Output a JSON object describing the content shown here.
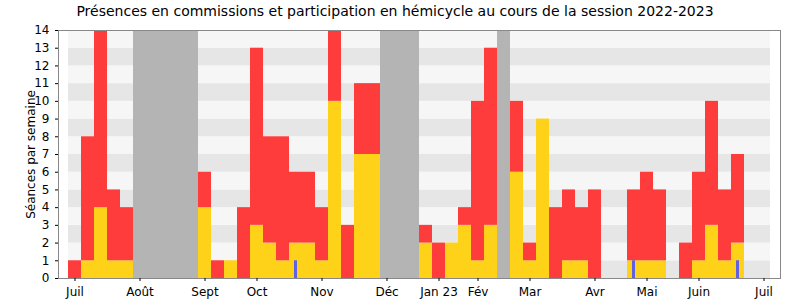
{
  "chart_data": {
    "type": "bar",
    "title": "Présences en commissions et participation en hémicycle au cours de la session 2022-2023",
    "y_label": "Séances par semaine",
    "stacked": true,
    "grid": true,
    "categories": [
      "Juil",
      null,
      null,
      null,
      null,
      "Août",
      null,
      null,
      null,
      null,
      "Sept",
      null,
      null,
      null,
      "Oct",
      null,
      null,
      null,
      null,
      "Nov",
      null,
      null,
      null,
      null,
      "Déc",
      null,
      null,
      null,
      "Jan 23",
      null,
      null,
      "Fév",
      null,
      null,
      null,
      "Mar",
      null,
      null,
      null,
      null,
      "Avr",
      null,
      null,
      null,
      "Mai",
      null,
      null,
      null,
      "Juin",
      null,
      null,
      null,
      null,
      "Juil"
    ],
    "series": [
      {
        "type": "background",
        "color": "#b4b4b4",
        "values": [
          null,
          null,
          null,
          null,
          null,
          14,
          14,
          14,
          14,
          14,
          null,
          null,
          null,
          null,
          null,
          null,
          null,
          null,
          null,
          null,
          null,
          null,
          null,
          null,
          14,
          14,
          14,
          null,
          null,
          null,
          null,
          null,
          null,
          14,
          null,
          null,
          null,
          null,
          null,
          null,
          null,
          null,
          null,
          null,
          null,
          null,
          null,
          null,
          null,
          null,
          null,
          null,
          null,
          null
        ]
      },
      {
        "type": "bar",
        "color": "#ffd21a",
        "values": [
          0,
          1,
          4,
          1,
          1,
          0,
          0,
          0,
          0,
          0,
          4,
          0,
          1,
          0,
          3,
          2,
          1,
          2,
          2,
          1,
          10,
          0,
          7,
          7,
          0,
          0,
          0,
          2,
          0,
          2,
          3,
          1,
          3,
          0,
          6,
          1,
          9,
          0,
          1,
          1,
          0,
          0,
          0,
          1,
          1,
          1,
          0,
          0,
          1,
          3,
          1,
          2,
          0,
          0
        ]
      },
      {
        "type": "bar",
        "color": "#ff3c3c",
        "values": [
          1,
          7,
          10,
          4,
          3,
          0,
          0,
          0,
          0,
          0,
          2,
          1,
          0,
          4,
          10,
          6,
          7,
          4,
          4,
          3,
          4,
          3,
          4,
          4,
          0,
          0,
          0,
          1,
          2,
          0,
          1,
          9,
          10,
          0,
          4,
          1,
          0,
          4,
          4,
          3,
          5,
          0,
          0,
          4,
          5,
          4,
          0,
          2,
          5,
          7,
          4,
          5,
          0,
          0
        ]
      },
      {
        "type": "tick",
        "color": "#6060e0",
        "values": [
          0,
          0,
          0,
          0,
          0,
          0,
          0,
          0,
          0,
          0,
          0,
          0,
          0,
          0,
          0,
          0,
          0,
          1,
          0,
          0,
          0,
          0,
          0,
          0,
          0,
          0,
          0,
          0,
          0,
          0,
          0,
          0,
          0,
          0,
          0,
          0,
          0,
          0,
          0,
          0,
          0,
          0,
          0,
          1,
          0,
          0,
          0,
          0,
          0,
          0,
          0,
          1,
          0,
          0
        ]
      }
    ],
    "ylim": [
      0,
      14
    ],
    "yticks": [
      0,
      1,
      2,
      3,
      4,
      5,
      6,
      7,
      8,
      9,
      10,
      11,
      12,
      13,
      14
    ]
  }
}
